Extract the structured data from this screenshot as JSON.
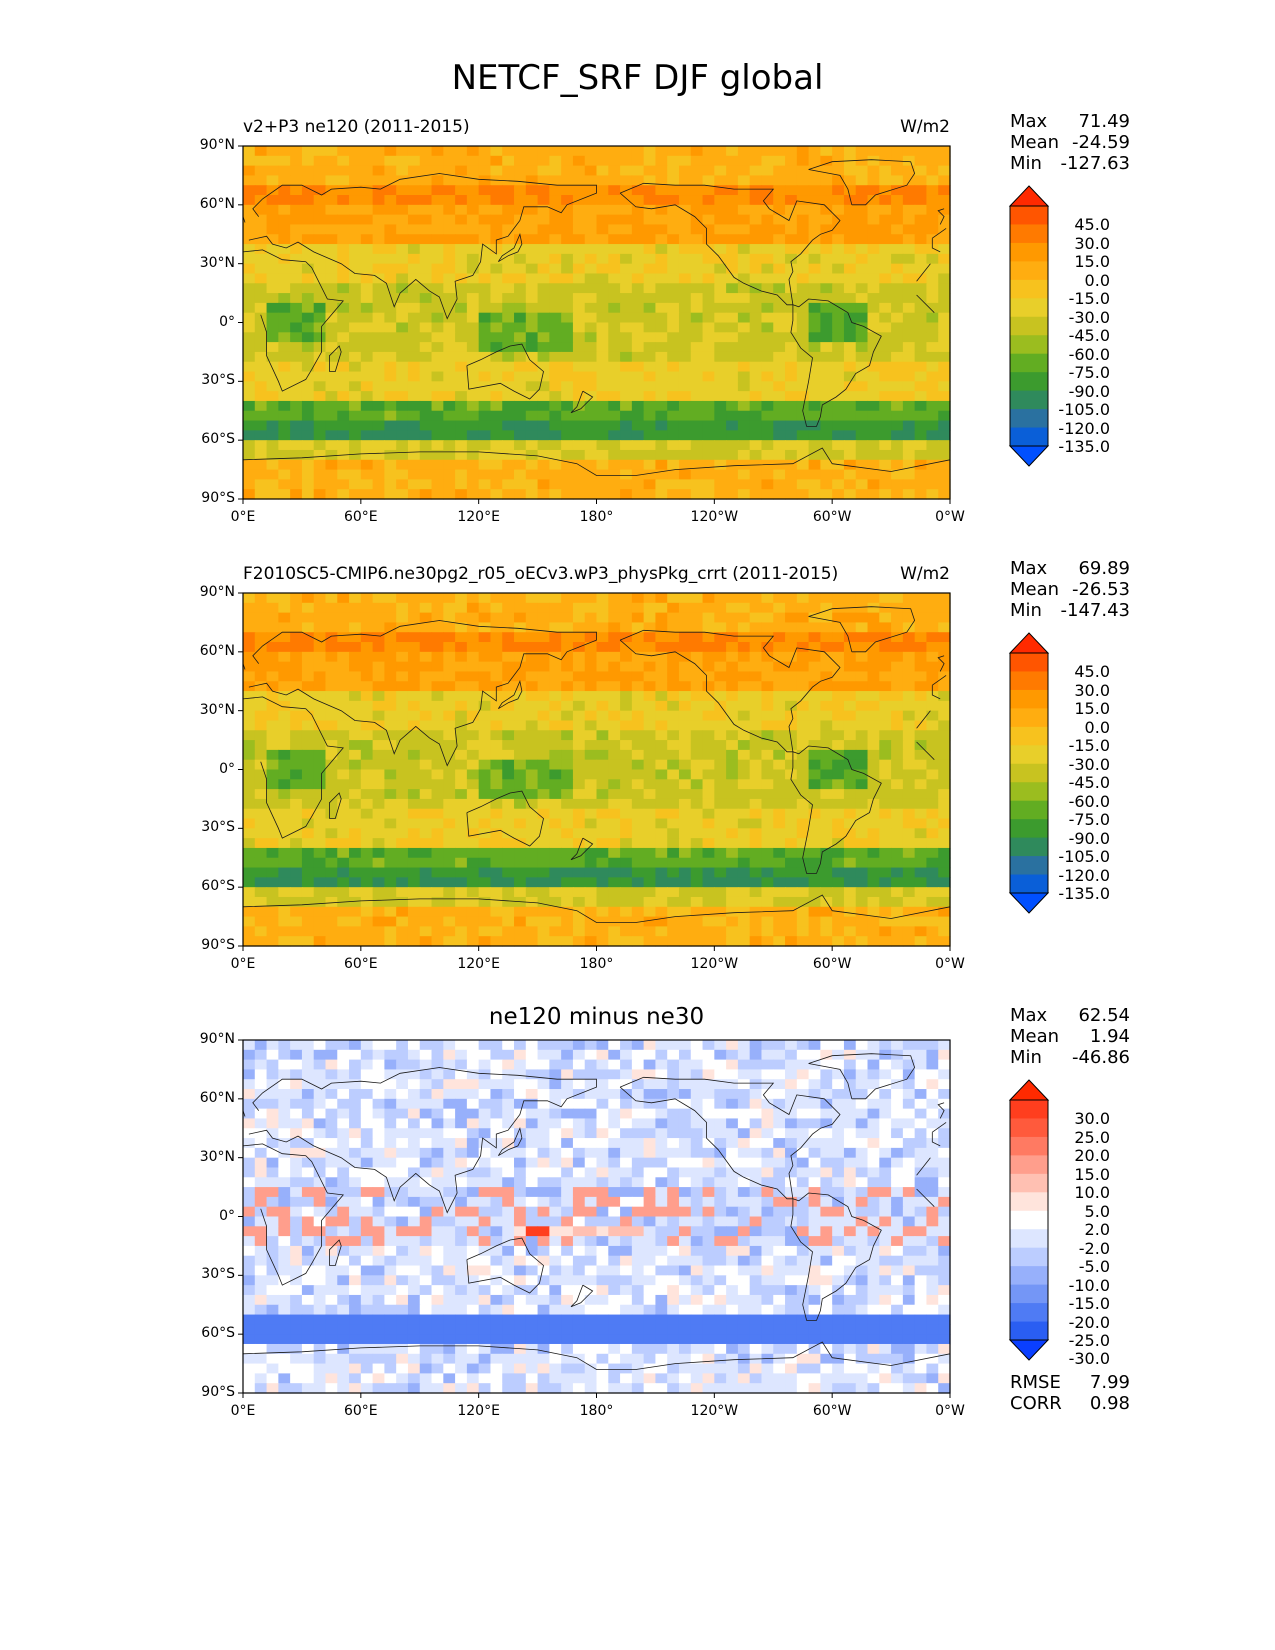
{
  "figure": {
    "title": "NETCF_SRF DJF global"
  },
  "chart_data": [
    {
      "type": "heatmap",
      "title": "v2+P3 ne120 (2011-2015)",
      "units": "W/m2",
      "stats": [
        {
          "label": "Max",
          "value": "71.49"
        },
        {
          "label": "Mean",
          "value": "-24.59"
        },
        {
          "label": "Min",
          "value": "-127.63"
        }
      ],
      "x_ticks": [
        "0°E",
        "60°E",
        "120°E",
        "180°",
        "120°W",
        "60°W",
        "0°W"
      ],
      "y_ticks": [
        "90°N",
        "60°N",
        "30°N",
        "0°",
        "30°S",
        "60°S",
        "90°S"
      ],
      "colorbar_levels": [
        "45.0",
        "30.0",
        "15.0",
        "0.0",
        "-15.0",
        "-30.0",
        "-45.0",
        "-60.0",
        "-75.0",
        "-90.0",
        "-105.0",
        "-120.0",
        "-135.0"
      ],
      "colorbar_colors": [
        "#ff2a00",
        "#ff5500",
        "#ff7a00",
        "#ff9900",
        "#ffad10",
        "#f7c21e",
        "#e8cf2a",
        "#c8c320",
        "#9bbd1f",
        "#62ad22",
        "#3c9b2e",
        "#2f8a5c",
        "#2a71a0",
        "#0a5fd8",
        "#0050ff"
      ]
    },
    {
      "type": "heatmap",
      "title": "F2010SC5-CMIP6.ne30pg2_r05_oECv3.wP3_physPkg_crrt (2011-2015)",
      "units": "W/m2",
      "stats": [
        {
          "label": "Max",
          "value": "69.89"
        },
        {
          "label": "Mean",
          "value": "-26.53"
        },
        {
          "label": "Min",
          "value": "-147.43"
        }
      ],
      "x_ticks": [
        "0°E",
        "60°E",
        "120°E",
        "180°",
        "120°W",
        "60°W",
        "0°W"
      ],
      "y_ticks": [
        "90°N",
        "60°N",
        "30°N",
        "0°",
        "30°S",
        "60°S",
        "90°S"
      ],
      "colorbar_levels": [
        "45.0",
        "30.0",
        "15.0",
        "0.0",
        "-15.0",
        "-30.0",
        "-45.0",
        "-60.0",
        "-75.0",
        "-90.0",
        "-105.0",
        "-120.0",
        "-135.0"
      ],
      "colorbar_colors": [
        "#ff2a00",
        "#ff5500",
        "#ff7a00",
        "#ff9900",
        "#ffad10",
        "#f7c21e",
        "#e8cf2a",
        "#c8c320",
        "#9bbd1f",
        "#62ad22",
        "#3c9b2e",
        "#2f8a5c",
        "#2a71a0",
        "#0a5fd8",
        "#0050ff"
      ]
    },
    {
      "type": "heatmap",
      "title": "ne120 minus ne30",
      "units": "",
      "stats": [
        {
          "label": "Max",
          "value": "62.54"
        },
        {
          "label": "Mean",
          "value": "1.94"
        },
        {
          "label": "Min",
          "value": "-46.86"
        }
      ],
      "extra_stats": [
        {
          "label": "RMSE",
          "value": "7.99"
        },
        {
          "label": "CORR",
          "value": "0.98"
        }
      ],
      "x_ticks": [
        "0°E",
        "60°E",
        "120°E",
        "180°",
        "120°W",
        "60°W",
        "0°W"
      ],
      "y_ticks": [
        "90°N",
        "60°N",
        "30°N",
        "0°",
        "30°S",
        "60°S",
        "90°S"
      ],
      "colorbar_levels": [
        "30.0",
        "25.0",
        "20.0",
        "15.0",
        "10.0",
        "5.0",
        "2.0",
        "-2.0",
        "-5.0",
        "-10.0",
        "-15.0",
        "-20.0",
        "-25.0",
        "-30.0"
      ],
      "colorbar_colors": [
        "#ff2a00",
        "#ff3e1e",
        "#ff5a3c",
        "#ff7a62",
        "#ff9e8c",
        "#ffc0b2",
        "#ffe4dc",
        "#ffffff",
        "#dde6ff",
        "#bccdff",
        "#97b0fb",
        "#7496f6",
        "#4f7bf4",
        "#2a5ef2",
        "#0a3fff"
      ]
    }
  ]
}
